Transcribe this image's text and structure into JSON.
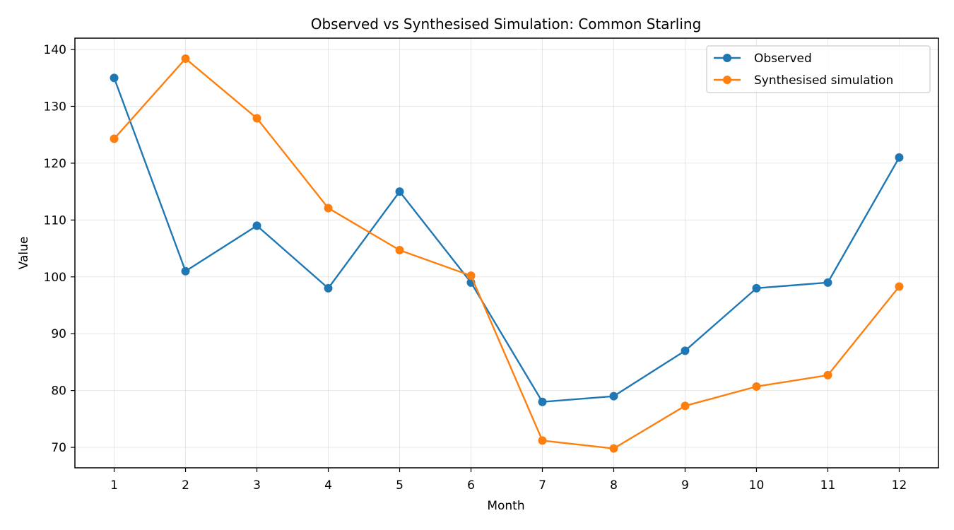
{
  "chart_data": {
    "type": "line",
    "title": "Observed vs Synthesised Simulation: Common Starling",
    "xlabel": "Month",
    "ylabel": "Value",
    "x": [
      1,
      2,
      3,
      4,
      5,
      6,
      7,
      8,
      9,
      10,
      11,
      12
    ],
    "xticks": [
      "1",
      "2",
      "3",
      "4",
      "5",
      "6",
      "7",
      "8",
      "9",
      "10",
      "11",
      "12"
    ],
    "yticks": [
      "70",
      "80",
      "90",
      "100",
      "110",
      "120",
      "130",
      "140"
    ],
    "ylim": [
      66.4,
      142.0
    ],
    "xlim": [
      0.45,
      12.55
    ],
    "grid": true,
    "legend_position": "top-right",
    "series": [
      {
        "name": "Observed",
        "color": "#1f77b4",
        "marker": "circle",
        "values": [
          135,
          101,
          109,
          98,
          115,
          99,
          78,
          79,
          87,
          98,
          99,
          121
        ]
      },
      {
        "name": "Synthesised simulation",
        "color": "#ff7f0e",
        "marker": "circle",
        "values": [
          124.3,
          138.4,
          127.9,
          112.1,
          104.7,
          100.2,
          71.2,
          69.8,
          77.3,
          80.7,
          82.7,
          98.3
        ]
      }
    ]
  }
}
